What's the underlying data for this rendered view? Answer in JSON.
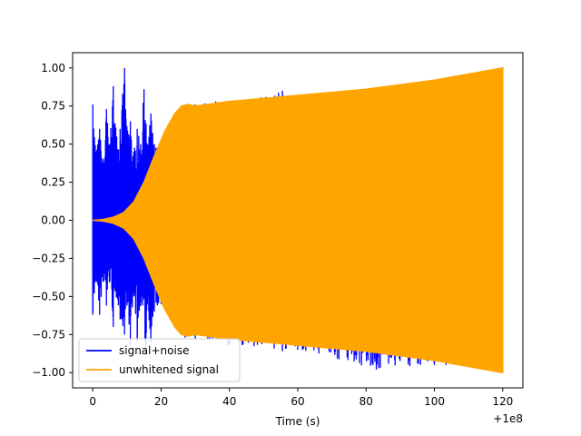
{
  "chart_data": {
    "type": "line",
    "title": "",
    "xlabel": "Time (s)",
    "ylabel": "",
    "x_offset_label": "+1e8",
    "xlim": [
      -5.9,
      125.9
    ],
    "ylim": [
      -1.1,
      1.1
    ],
    "x_ticks": [
      0,
      20,
      40,
      60,
      80,
      100,
      120
    ],
    "x_tick_labels": [
      "0",
      "20",
      "40",
      "60",
      "80",
      "100",
      "120"
    ],
    "y_ticks": [
      -1.0,
      -0.75,
      -0.5,
      -0.25,
      0.0,
      0.25,
      0.5,
      0.75,
      1.0
    ],
    "y_tick_labels": [
      "−1.00",
      "−0.75",
      "−0.50",
      "−0.25",
      "0.00",
      "0.25",
      "0.50",
      "0.75",
      "1.00"
    ],
    "grid": false,
    "legend_position": "lower-left",
    "series": [
      {
        "name": "signal+noise",
        "color": "#0000ff",
        "upper_envelope": [
          [
            0.0,
            0.76
          ],
          [
            1.0,
            0.45
          ],
          [
            2.0,
            0.6
          ],
          [
            3.0,
            0.4
          ],
          [
            4.0,
            0.73
          ],
          [
            5.0,
            0.5
          ],
          [
            6.0,
            0.88
          ],
          [
            7.0,
            0.55
          ],
          [
            8.0,
            0.6
          ],
          [
            9.3,
            1.0
          ],
          [
            10.0,
            0.6
          ],
          [
            11.0,
            0.65
          ],
          [
            12.0,
            0.45
          ],
          [
            13.0,
            0.6
          ],
          [
            14.0,
            0.5
          ],
          [
            15.0,
            0.86
          ],
          [
            16.0,
            0.5
          ],
          [
            17.0,
            0.7
          ],
          [
            18.0,
            0.5
          ],
          [
            20.0,
            0.5
          ],
          [
            22.0,
            0.6
          ],
          [
            25.0,
            0.72
          ],
          [
            27.0,
            0.76
          ],
          [
            28.0,
            0.75
          ],
          [
            30.0,
            0.76
          ],
          [
            36.0,
            0.78
          ],
          [
            40.0,
            0.77
          ],
          [
            55.5,
            0.85
          ],
          [
            60.0,
            0.8
          ],
          [
            80.0,
            0.85
          ],
          [
            100.0,
            0.92
          ],
          [
            120.0,
            1.0
          ]
        ],
        "lower_envelope": [
          [
            0.0,
            -0.62
          ],
          [
            1.0,
            -0.4
          ],
          [
            2.0,
            -0.62
          ],
          [
            3.0,
            -0.4
          ],
          [
            4.0,
            -0.56
          ],
          [
            5.0,
            -0.4
          ],
          [
            6.0,
            -0.7
          ],
          [
            7.0,
            -0.5
          ],
          [
            8.0,
            -0.65
          ],
          [
            9.3,
            -0.75
          ],
          [
            10.0,
            -0.55
          ],
          [
            11.0,
            -0.82
          ],
          [
            12.0,
            -0.5
          ],
          [
            13.0,
            -0.8
          ],
          [
            14.0,
            -0.55
          ],
          [
            15.5,
            -0.88
          ],
          [
            16.0,
            -0.55
          ],
          [
            17.0,
            -0.8
          ],
          [
            18.0,
            -0.6
          ],
          [
            20.0,
            -0.55
          ],
          [
            22.0,
            -0.6
          ],
          [
            25.0,
            -0.72
          ],
          [
            27.0,
            -0.77
          ],
          [
            30.0,
            -0.78
          ],
          [
            40.0,
            -0.82
          ],
          [
            55.5,
            -0.86
          ],
          [
            60.0,
            -0.85
          ],
          [
            83.0,
            -0.98
          ],
          [
            100.0,
            -0.95
          ],
          [
            120.0,
            -1.0
          ]
        ]
      },
      {
        "name": "unwhitened signal",
        "color": "#ffa500",
        "amplitude_envelope": [
          [
            0.0,
            0.0
          ],
          [
            3.0,
            0.005
          ],
          [
            6.0,
            0.02
          ],
          [
            9.0,
            0.05
          ],
          [
            12.0,
            0.12
          ],
          [
            15.0,
            0.25
          ],
          [
            18.0,
            0.42
          ],
          [
            21.0,
            0.58
          ],
          [
            24.0,
            0.7
          ],
          [
            26.0,
            0.75
          ],
          [
            28.0,
            0.76
          ],
          [
            30.0,
            0.75
          ],
          [
            40.0,
            0.78
          ],
          [
            60.0,
            0.82
          ],
          [
            80.0,
            0.86
          ],
          [
            100.0,
            0.92
          ],
          [
            120.0,
            1.0
          ]
        ]
      }
    ]
  }
}
